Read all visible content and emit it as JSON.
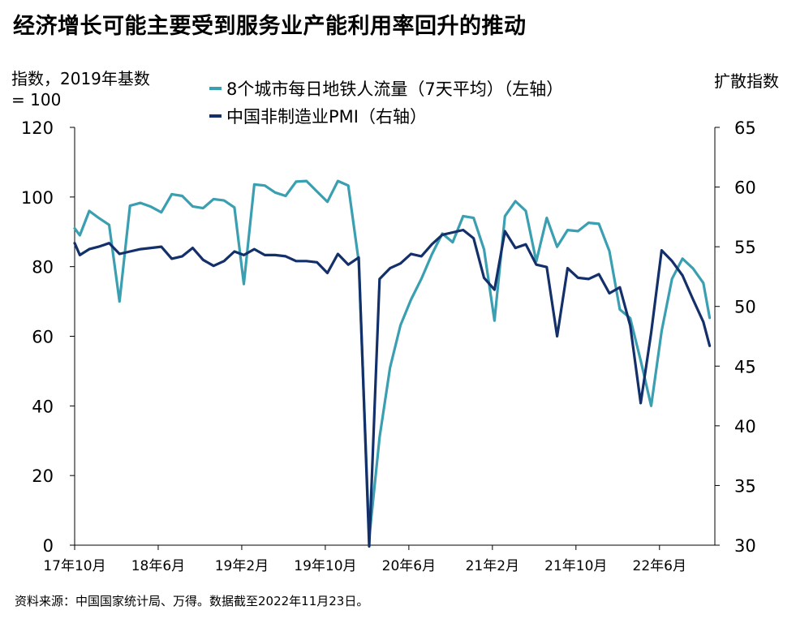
{
  "colors": {
    "metro": "#3a9fb0",
    "pmi": "#13306a",
    "axis": "#000000"
  },
  "chart_data": {
    "type": "line",
    "title": "经济增长可能主要受到服务业产能利用率回升的推动",
    "ylabel": "指数，2019年基数 = 100",
    "ylabel_right": "扩散指数",
    "ylim": [
      0,
      120
    ],
    "ylim_right": [
      30,
      65
    ],
    "yticks": [
      0,
      20,
      40,
      60,
      80,
      100,
      120
    ],
    "yticks_right": [
      30,
      35,
      40,
      45,
      50,
      55,
      60,
      65
    ],
    "xticks": [
      {
        "label": "17年10月",
        "i": 0
      },
      {
        "label": "18年6月",
        "i": 8
      },
      {
        "label": "19年2月",
        "i": 16
      },
      {
        "label": "19年10月",
        "i": 24
      },
      {
        "label": "20年6月",
        "i": 32
      },
      {
        "label": "21年2月",
        "i": 40
      },
      {
        "label": "21年10月",
        "i": 48
      },
      {
        "label": "22年6月",
        "i": 56
      }
    ],
    "legend_position": "top",
    "series": [
      {
        "name": "8个城市每日地铁人流量（7天平均）（左轴）",
        "axis": "left",
        "points": [
          [
            0,
            91
          ],
          [
            0.5,
            89
          ],
          [
            1.4,
            96
          ],
          [
            2.3,
            94
          ],
          [
            3.3,
            92
          ],
          [
            4.3,
            70
          ],
          [
            5.3,
            97.5
          ],
          [
            6.3,
            98.3
          ],
          [
            7.3,
            97.2
          ],
          [
            8.3,
            95.6
          ],
          [
            9.3,
            100.8
          ],
          [
            10.3,
            100.3
          ],
          [
            11.3,
            97.3
          ],
          [
            12.3,
            96.8
          ],
          [
            13.3,
            99.4
          ],
          [
            14.3,
            99
          ],
          [
            15.3,
            97
          ],
          [
            16.2,
            75
          ],
          [
            17.2,
            103.6
          ],
          [
            18.2,
            103.3
          ],
          [
            19.2,
            101.3
          ],
          [
            20.2,
            100.3
          ],
          [
            21.2,
            104.4
          ],
          [
            22.2,
            104.6
          ],
          [
            23.2,
            101.6
          ],
          [
            24.2,
            98.6
          ],
          [
            25.2,
            104.6
          ],
          [
            26.2,
            103.3
          ],
          [
            27.2,
            81.5
          ],
          [
            28.2,
            2
          ],
          [
            29.2,
            31
          ],
          [
            30.2,
            51
          ],
          [
            31.2,
            63.2
          ],
          [
            32.2,
            70.5
          ],
          [
            33.2,
            76.5
          ],
          [
            34.2,
            83.5
          ],
          [
            35.2,
            89.5
          ],
          [
            36.2,
            87
          ],
          [
            37.2,
            94.5
          ],
          [
            38.2,
            94
          ],
          [
            39.2,
            85
          ],
          [
            40.2,
            64.5
          ],
          [
            41.2,
            94.5
          ],
          [
            42.2,
            98.8
          ],
          [
            43.2,
            96
          ],
          [
            44.2,
            81.5
          ],
          [
            45.2,
            94
          ],
          [
            46.2,
            85.7
          ],
          [
            47.2,
            90.5
          ],
          [
            48.2,
            90.2
          ],
          [
            49.2,
            92.6
          ],
          [
            50.2,
            92.3
          ],
          [
            51.2,
            84.5
          ],
          [
            52.2,
            67.7
          ],
          [
            53.2,
            65.2
          ],
          [
            54.2,
            53
          ],
          [
            55.2,
            40
          ],
          [
            56.2,
            61.5
          ],
          [
            57.2,
            76.5
          ],
          [
            58.2,
            82.3
          ],
          [
            59.2,
            79.5
          ],
          [
            60.2,
            75.3
          ],
          [
            60.8,
            65.3
          ]
        ]
      },
      {
        "name": "中国非制造业PMI（右轴）",
        "axis": "right",
        "points": [
          [
            0,
            55.3
          ],
          [
            0.5,
            54.3
          ],
          [
            1.4,
            54.8
          ],
          [
            2.3,
            55.0
          ],
          [
            3.3,
            55.3
          ],
          [
            4.3,
            54.4
          ],
          [
            5.3,
            54.6
          ],
          [
            6.3,
            54.8
          ],
          [
            7.3,
            54.9
          ],
          [
            8.3,
            55.0
          ],
          [
            9.3,
            54.0
          ],
          [
            10.3,
            54.2
          ],
          [
            11.3,
            54.9
          ],
          [
            12.3,
            53.9
          ],
          [
            13.3,
            53.4
          ],
          [
            14.3,
            53.8
          ],
          [
            15.3,
            54.6
          ],
          [
            16.2,
            54.3
          ],
          [
            17.2,
            54.8
          ],
          [
            18.2,
            54.3
          ],
          [
            19.2,
            54.3
          ],
          [
            20.2,
            54.2
          ],
          [
            21.2,
            53.8
          ],
          [
            22.2,
            53.8
          ],
          [
            23.2,
            53.7
          ],
          [
            24.2,
            52.8
          ],
          [
            25.2,
            54.4
          ],
          [
            26.2,
            53.5
          ],
          [
            27.2,
            54.1
          ],
          [
            28.2,
            29.9
          ],
          [
            29.2,
            52.3
          ],
          [
            30.2,
            53.2
          ],
          [
            31.2,
            53.6
          ],
          [
            32.2,
            54.4
          ],
          [
            33.2,
            54.2
          ],
          [
            34.2,
            55.2
          ],
          [
            35.2,
            56.0
          ],
          [
            36.2,
            56.2
          ],
          [
            37.2,
            56.4
          ],
          [
            38.2,
            55.7
          ],
          [
            39.2,
            52.4
          ],
          [
            40.2,
            51.4
          ],
          [
            41.2,
            56.3
          ],
          [
            42.2,
            54.9
          ],
          [
            43.2,
            55.2
          ],
          [
            44.2,
            53.5
          ],
          [
            45.2,
            53.3
          ],
          [
            46.2,
            47.5
          ],
          [
            47.2,
            53.2
          ],
          [
            48.2,
            52.4
          ],
          [
            49.2,
            52.3
          ],
          [
            50.2,
            52.7
          ],
          [
            51.2,
            51.1
          ],
          [
            52.2,
            51.6
          ],
          [
            53.2,
            48.4
          ],
          [
            54.2,
            41.9
          ],
          [
            55.2,
            47.8
          ],
          [
            56.2,
            54.7
          ],
          [
            57.2,
            53.8
          ],
          [
            58.2,
            52.6
          ],
          [
            59.2,
            50.6
          ],
          [
            60.2,
            48.7
          ],
          [
            60.8,
            46.7
          ]
        ]
      }
    ]
  },
  "unit_left_line1": "指数，2019年基数",
  "unit_left_line2": "= 100",
  "source": "资料来源：中国国家统计局、万得。数据截至2022年11月23日。"
}
